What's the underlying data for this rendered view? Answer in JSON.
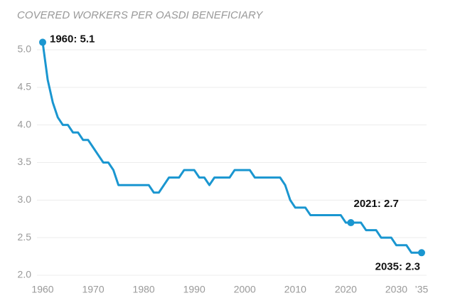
{
  "chart_data": {
    "type": "line",
    "title": "COVERED WORKERS PER OASDI BENEFICIARY",
    "x": [
      1960,
      1961,
      1962,
      1963,
      1964,
      1965,
      1966,
      1967,
      1968,
      1969,
      1970,
      1971,
      1972,
      1973,
      1974,
      1975,
      1976,
      1977,
      1978,
      1979,
      1980,
      1981,
      1982,
      1983,
      1984,
      1985,
      1986,
      1987,
      1988,
      1989,
      1990,
      1991,
      1992,
      1993,
      1994,
      1995,
      1996,
      1997,
      1998,
      1999,
      2000,
      2001,
      2002,
      2003,
      2004,
      2005,
      2006,
      2007,
      2008,
      2009,
      2010,
      2011,
      2012,
      2013,
      2014,
      2015,
      2016,
      2017,
      2018,
      2019,
      2020,
      2021,
      2022,
      2023,
      2024,
      2025,
      2026,
      2027,
      2028,
      2029,
      2030,
      2031,
      2032,
      2033,
      2034,
      2035
    ],
    "series": [
      {
        "color": "#1a96d0",
        "values": [
          5.1,
          4.6,
          4.3,
          4.1,
          4.0,
          4.0,
          3.9,
          3.9,
          3.8,
          3.8,
          3.7,
          3.6,
          3.5,
          3.5,
          3.4,
          3.2,
          3.2,
          3.2,
          3.2,
          3.2,
          3.2,
          3.2,
          3.1,
          3.1,
          3.2,
          3.3,
          3.3,
          3.3,
          3.4,
          3.4,
          3.4,
          3.3,
          3.3,
          3.2,
          3.3,
          3.3,
          3.3,
          3.3,
          3.4,
          3.4,
          3.4,
          3.4,
          3.3,
          3.3,
          3.3,
          3.3,
          3.3,
          3.3,
          3.2,
          3.0,
          2.9,
          2.9,
          2.9,
          2.8,
          2.8,
          2.8,
          2.8,
          2.8,
          2.8,
          2.8,
          2.7,
          2.7,
          2.7,
          2.7,
          2.6,
          2.6,
          2.6,
          2.5,
          2.5,
          2.5,
          2.4,
          2.4,
          2.4,
          2.3,
          2.3,
          2.3
        ]
      }
    ],
    "annotations": [
      {
        "x": 1960,
        "y": 5.1,
        "label": "1960: 5.1"
      },
      {
        "x": 2021,
        "y": 2.7,
        "label": "2021: 2.7"
      },
      {
        "x": 2035,
        "y": 2.3,
        "label": "2035: 2.3"
      }
    ],
    "xlim": [
      1960,
      2035
    ],
    "xticks": [
      1960,
      1970,
      1980,
      1990,
      2000,
      2010,
      2020,
      2030,
      {
        "value": 2035,
        "label": "’35"
      }
    ],
    "ylim": [
      2,
      5
    ],
    "yticks": [
      {
        "value": 2,
        "label": "2.0"
      },
      2.5,
      {
        "value": 3,
        "label": "3.0"
      },
      3.5,
      {
        "value": 4,
        "label": "4.0"
      },
      4.5,
      {
        "value": 5,
        "label": "5.0"
      }
    ],
    "grid": true
  }
}
